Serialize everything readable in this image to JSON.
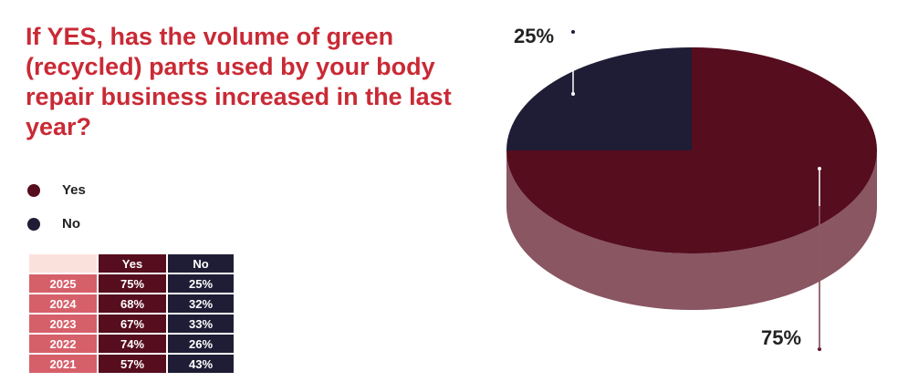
{
  "chart_data": {
    "type": "pie",
    "title": "If YES, has the volume of green (recycled) parts used by your body repair business increased in the last year?",
    "categories": [
      "Yes",
      "No"
    ],
    "values": [
      75,
      25
    ],
    "value_labels": [
      "75%",
      "25%"
    ],
    "colors": [
      "#560d1e",
      "#1f1d36"
    ]
  },
  "table": {
    "columns": [
      "Yes",
      "No"
    ],
    "rows": [
      [
        "2025",
        "75%",
        "25%"
      ],
      [
        "2024",
        "68%",
        "32%"
      ],
      [
        "2023",
        "67%",
        "33%"
      ],
      [
        "2022",
        "74%",
        "26%"
      ],
      [
        "2021",
        "57%",
        "43%"
      ]
    ]
  }
}
